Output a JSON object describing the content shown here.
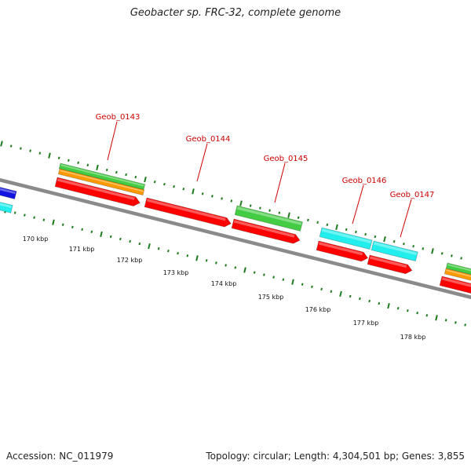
{
  "title": "Geobacter sp. FRC-32, complete genome",
  "footer": {
    "accession": "Accession: NC_011979",
    "summary": "Topology: circular; Length: 4,304,501 bp; Genes: 3,855"
  },
  "colors": {
    "backbone": "#8a8a8a",
    "tick": "#1f7a1f",
    "label": "#cc0000",
    "cds": "#ff0000",
    "green": "#44cc44",
    "orange": "#ff9900",
    "cyan": "#22eeee",
    "blue": "#1414e0"
  },
  "scale_labels": [
    "170 kbp",
    "171 kbp",
    "172 kbp",
    "173 kbp",
    "174 kbp",
    "175 kbp",
    "176 kbp",
    "177 kbp",
    "178 kbp"
  ],
  "gene_labels": [
    "Geob_0143",
    "Geob_0144",
    "Geob_0145",
    "Geob_0146",
    "Geob_0147"
  ]
}
